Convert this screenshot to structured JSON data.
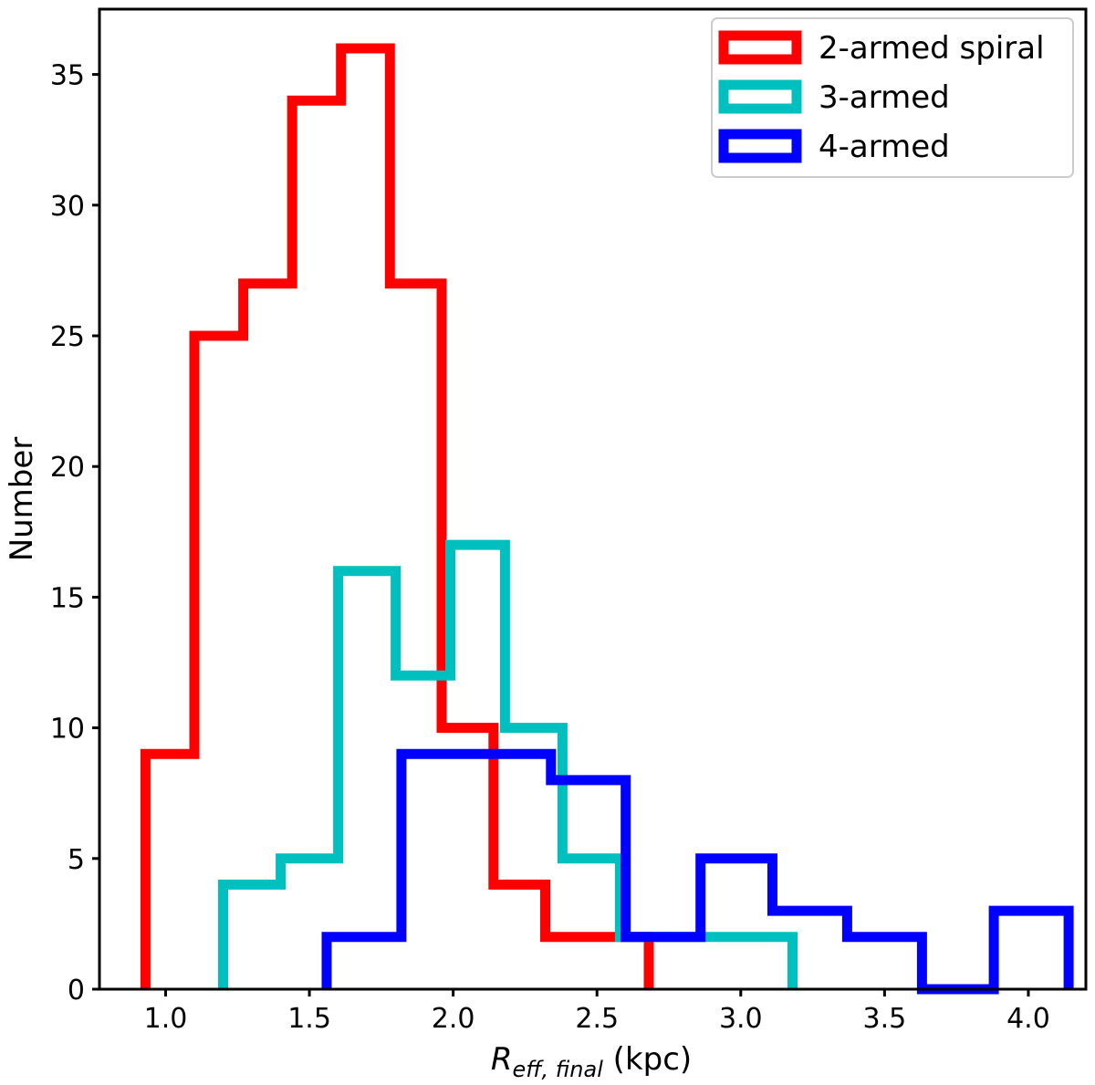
{
  "chart_data": {
    "type": "histogram",
    "title": "",
    "xlabel_main": "R",
    "xlabel_sub": "eff, final",
    "xlabel_unit": " (kpc)",
    "ylabel": "Number",
    "xlim": [
      0.77,
      4.2
    ],
    "ylim": [
      0,
      37.5
    ],
    "xticks": [
      1.0,
      1.5,
      2.0,
      2.5,
      3.0,
      3.5,
      4.0
    ],
    "xtick_labels": [
      "1.0",
      "1.5",
      "2.0",
      "2.5",
      "3.0",
      "3.5",
      "4.0"
    ],
    "yticks": [
      0,
      5,
      10,
      15,
      20,
      25,
      30,
      35
    ],
    "ytick_labels": [
      "0",
      "5",
      "10",
      "15",
      "20",
      "25",
      "30",
      "35"
    ],
    "legend_position": "top-right",
    "series": [
      {
        "name": "2-armed spiral",
        "color": "#ff0000",
        "bin_edges": [
          0.93,
          1.1,
          1.27,
          1.44,
          1.61,
          1.78,
          1.96,
          2.14,
          2.32,
          2.5,
          2.68
        ],
        "counts": [
          9,
          25,
          27,
          34,
          36,
          27,
          10,
          4,
          2,
          2
        ]
      },
      {
        "name": "3-armed",
        "color": "#00bfbf",
        "bin_edges": [
          1.2,
          1.4,
          1.6,
          1.8,
          1.99,
          2.18,
          2.38,
          2.58,
          2.78,
          2.98,
          3.18
        ],
        "counts": [
          4,
          5,
          16,
          12,
          17,
          10,
          5,
          2,
          2,
          2
        ]
      },
      {
        "name": "4-armed",
        "color": "#0000ff",
        "bin_edges": [
          1.56,
          1.82,
          2.08,
          2.34,
          2.6,
          2.86,
          3.11,
          3.37,
          3.63,
          3.88,
          4.14
        ],
        "counts": [
          2,
          9,
          9,
          8,
          2,
          5,
          3,
          2,
          0,
          3
        ]
      }
    ]
  }
}
